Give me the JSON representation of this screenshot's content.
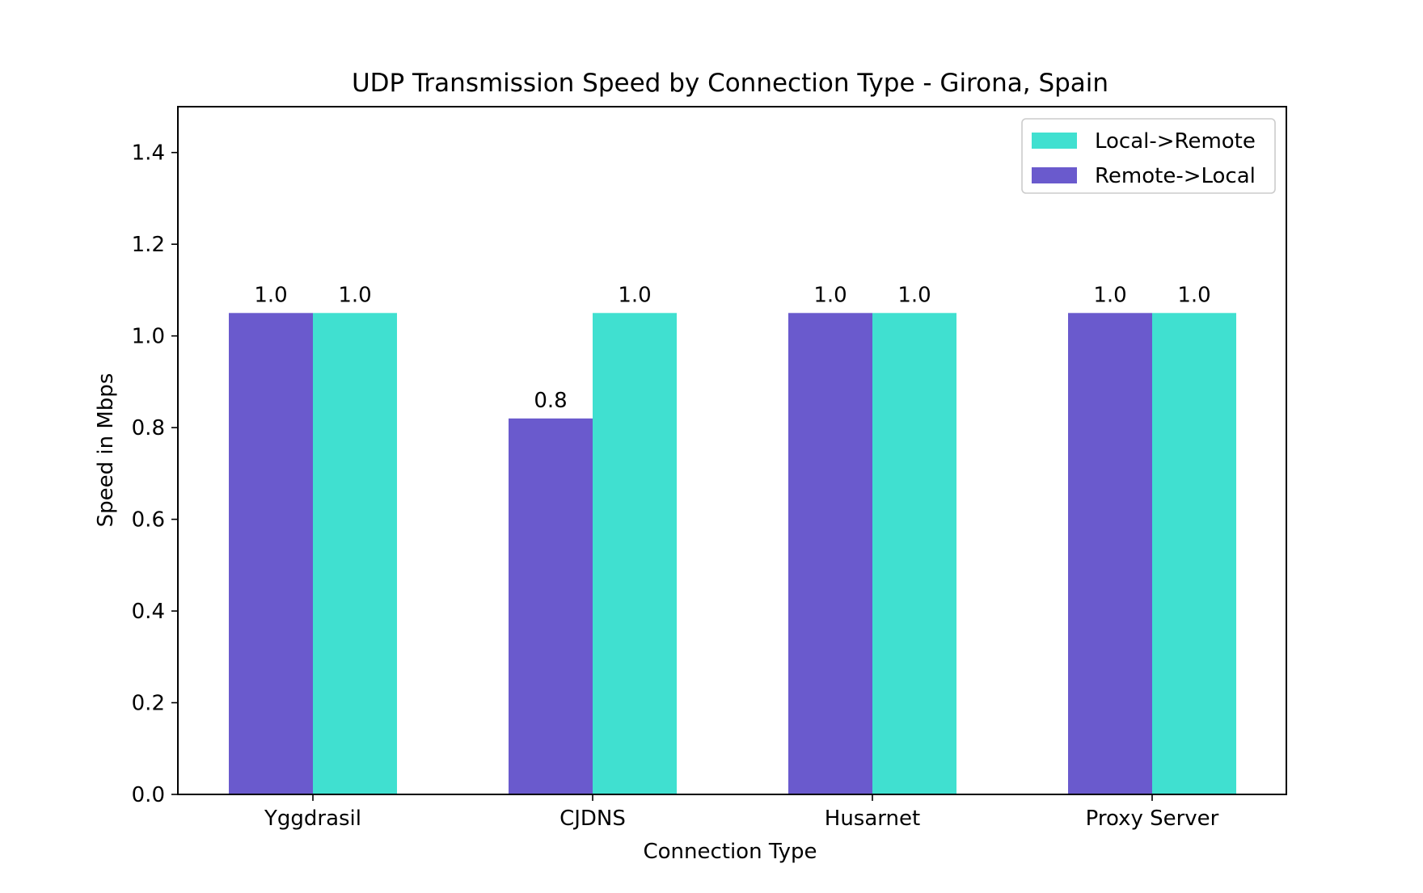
{
  "chart_data": {
    "type": "bar",
    "title": "UDP Transmission Speed by Connection Type - Girona, Spain",
    "xlabel": "Connection Type",
    "ylabel": "Speed in Mbps",
    "categories": [
      "Yggdrasil",
      "CJDNS",
      "Husarnet",
      "Proxy Server"
    ],
    "ylim": [
      0,
      1.5
    ],
    "yticks": [
      "0.0",
      "0.2",
      "0.4",
      "0.6",
      "0.8",
      "1.0",
      "1.2",
      "1.4"
    ],
    "grid": false,
    "legend_position": "top-right",
    "series": [
      {
        "name": "Remote->Local",
        "color": "#6a5acd",
        "values": [
          1.05,
          0.82,
          1.05,
          1.05
        ],
        "labels": [
          "1.0",
          "0.8",
          "1.0",
          "1.0"
        ]
      },
      {
        "name": "Local->Remote",
        "color": "#40e0d0",
        "values": [
          1.05,
          1.05,
          1.05,
          1.05
        ],
        "labels": [
          "1.0",
          "1.0",
          "1.0",
          "1.0"
        ]
      }
    ],
    "legend_order": [
      1,
      0
    ]
  }
}
